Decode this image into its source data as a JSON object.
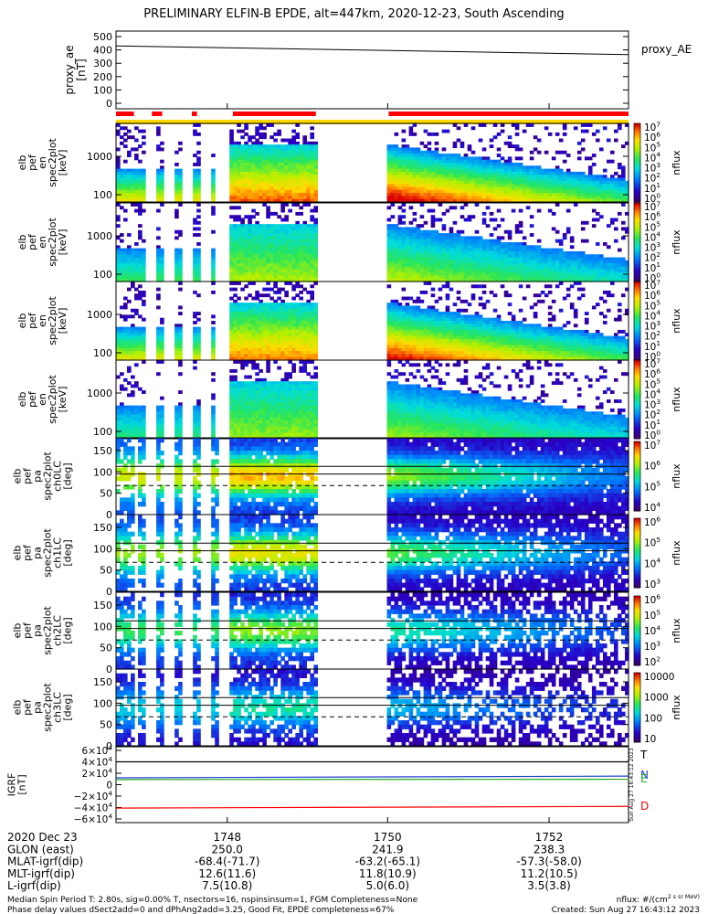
{
  "title": "PRELIMINARY ELFIN-B EPDE, alt=447km, 2020-12-23, South Ascending",
  "chart_data": {
    "type": "heatmap",
    "time_ticks": [
      "1748",
      "1750",
      "1752"
    ],
    "proxy_ae": {
      "ylabel": [
        "proxy_ae",
        "[nT]"
      ],
      "legend": "proxy_AE",
      "yticks": [
        "500",
        "400",
        "300",
        "200",
        "100",
        "0"
      ],
      "ylim": [
        0,
        500
      ],
      "series": [
        {
          "x": [
            0,
            1
          ],
          "y": [
            430,
            365
          ]
        }
      ]
    },
    "status_bars": {
      "red": [
        [
          0.0,
          0.07
        ],
        [
          0.09,
          0.13
        ],
        [
          0.17,
          0.2
        ],
        [
          0.43,
          0.72
        ],
        [
          1.0,
          2.0
        ]
      ],
      "yellow": [
        [
          0.0,
          2.0
        ]
      ]
    },
    "spectrograms": [
      {
        "ylabel": [
          "elb",
          "pef",
          "en",
          "spec2plot",
          "[keV]"
        ],
        "yticks": [
          "1000",
          "100"
        ],
        "cbar_ticks": [
          "10^7",
          "10^6",
          "10^5",
          "10^4",
          "10^3",
          "10^2",
          "10^1",
          "10^0"
        ],
        "cbar_label": "nflux"
      },
      {
        "ylabel": [
          "elb",
          "pef",
          "en",
          "spec2plot",
          "[keV]"
        ],
        "yticks": [
          "1000",
          "100"
        ],
        "cbar_ticks": [
          "10^7",
          "10^6",
          "10^5",
          "10^4",
          "10^3",
          "10^2",
          "10^1",
          "10^0"
        ],
        "cbar_label": "nflux"
      },
      {
        "ylabel": [
          "elb",
          "pef",
          "en",
          "spec2plot",
          "[keV]"
        ],
        "yticks": [
          "1000",
          "100"
        ],
        "cbar_ticks": [
          "10^7",
          "10^6",
          "10^5",
          "10^4",
          "10^3",
          "10^2",
          "10^1",
          "10^0"
        ],
        "cbar_label": "nflux"
      },
      {
        "ylabel": [
          "elb",
          "pef",
          "en",
          "spec2plot",
          "[keV]"
        ],
        "yticks": [
          "1000",
          "100"
        ],
        "cbar_ticks": [
          "10^7",
          "10^6",
          "10^5",
          "10^4",
          "10^3",
          "10^2",
          "10^1",
          "10^0"
        ],
        "cbar_label": "nflux"
      }
    ],
    "pitch_angles": [
      {
        "ylabel": [
          "elb",
          "pef",
          "pa",
          "spec2plot",
          "ch0LC",
          "[deg]"
        ],
        "yticks": [
          "150",
          "100",
          "50",
          "0"
        ],
        "cbar_ticks": [
          "10^7",
          "10^6",
          "10^5",
          "10^4"
        ],
        "cbar_label": "nflux"
      },
      {
        "ylabel": [
          "elb",
          "pef",
          "pa",
          "spec2plot",
          "ch1LC",
          "[deg]"
        ],
        "yticks": [
          "150",
          "100",
          "50",
          "0"
        ],
        "cbar_ticks": [
          "10^6",
          "10^5",
          "10^4",
          "10^3"
        ],
        "cbar_label": "nflux"
      },
      {
        "ylabel": [
          "elb",
          "pef",
          "pa",
          "spec2plot",
          "ch2LC",
          "[deg]"
        ],
        "yticks": [
          "150",
          "100",
          "50",
          "0"
        ],
        "cbar_ticks": [
          "10^6",
          "10^5",
          "10^4",
          "10^3",
          "10^2"
        ],
        "cbar_label": "nflux"
      },
      {
        "ylabel": [
          "elb",
          "pef",
          "pa",
          "spec2plot",
          "ch3LC",
          "[deg]"
        ],
        "yticks": [
          "150",
          "100",
          "50",
          "0"
        ],
        "cbar_ticks": [
          "10000",
          "1000",
          "100",
          "10"
        ],
        "cbar_label": "nflux"
      }
    ],
    "igrf": {
      "ylabel": [
        "IGRF",
        "[nT]"
      ],
      "yticks": [
        "6×10^4",
        "4×10^4",
        "2×10^4",
        "0",
        "−2×10^4",
        "−4×10^4",
        "−6×10^4"
      ],
      "ylim": [
        -60000,
        60000
      ],
      "series": [
        {
          "name": "T",
          "color": "#000000",
          "y": [
            40000,
            40000
          ]
        },
        {
          "name": "N",
          "color": "#1f3fd0",
          "y": [
            12000,
            15000
          ]
        },
        {
          "name": "E",
          "color": "#22aa22",
          "y": [
            9000,
            9500
          ]
        },
        {
          "name": "D",
          "color": "#ff0000",
          "y": [
            -41000,
            -38000
          ]
        }
      ],
      "side_label": "Sun Aug 27 16:43:12 2023"
    },
    "colors": {
      "red": "#ff0000",
      "yellow": "#ffd800"
    }
  },
  "ephemeris": {
    "rows": [
      {
        "label": "2020 Dec 23",
        "v1": "1748",
        "v2": "1750",
        "v3": "1752"
      },
      {
        "label": "GLON (east)",
        "v1": "250.0",
        "v2": "241.9",
        "v3": "238.3"
      },
      {
        "label": "MLAT-igrf(dip)",
        "v1": "-68.4(-71.7)",
        "v2": "-63.2(-65.1)",
        "v3": "-57.3(-58.0)"
      },
      {
        "label": "MLT-igrf(dip)",
        "v1": "12.6(11.6)",
        "v2": "11.8(10.9)",
        "v3": "11.2(10.5)"
      },
      {
        "label": "L-igrf(dip)",
        "v1": "7.5(10.8)",
        "v2": "5.0(6.0)",
        "v3": "3.5(3.8)"
      }
    ]
  },
  "footer": {
    "line1": "Median Spin Period T: 2.80s, sig=0.00% T, nsectors=16, nspinsinsum=1, FGM Completeness=None",
    "line2": "Phase delay values dSect2add=0 and dPhAng2add=3.25, Good Fit, EPDE completeness=67%",
    "units": "nflux: #/(cm^2 s sr MeV)",
    "created": "Created: Sun Aug 27 16:43:12 2023"
  }
}
